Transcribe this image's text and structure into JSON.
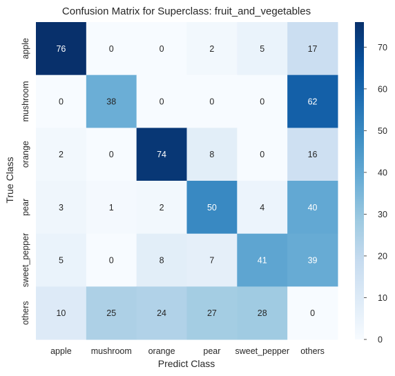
{
  "chart_data": {
    "type": "heatmap",
    "title": "Confusion Matrix for Superclass: fruit_and_vegetables",
    "xlabel": "Predict Class",
    "ylabel": "True Class",
    "x_categories": [
      "apple",
      "mushroom",
      "orange",
      "pear",
      "sweet_pepper",
      "others"
    ],
    "y_categories": [
      "apple",
      "mushroom",
      "orange",
      "pear",
      "sweet_pepper",
      "others"
    ],
    "values": [
      [
        76,
        0,
        0,
        2,
        5,
        17
      ],
      [
        0,
        38,
        0,
        0,
        0,
        62
      ],
      [
        2,
        0,
        74,
        8,
        0,
        16
      ],
      [
        3,
        1,
        2,
        50,
        4,
        40
      ],
      [
        5,
        0,
        8,
        7,
        41,
        39
      ],
      [
        10,
        25,
        24,
        27,
        28,
        0
      ]
    ],
    "colormap": "Blues",
    "color_range": [
      0,
      76
    ],
    "colorbar_ticks": [
      0,
      10,
      20,
      30,
      40,
      50,
      60,
      70
    ],
    "grid": false
  }
}
